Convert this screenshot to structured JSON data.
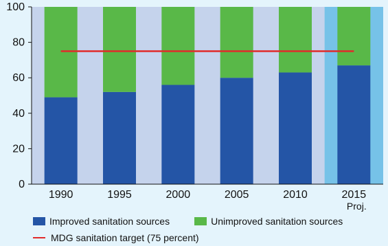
{
  "chart_data": {
    "type": "bar",
    "stacked": true,
    "categories": [
      "1990",
      "1995",
      "2000",
      "2005",
      "2010",
      "2015"
    ],
    "category_sublabels": [
      "",
      "",
      "",
      "",
      "",
      "Proj."
    ],
    "projected_categories": [
      "2015"
    ],
    "series": [
      {
        "name": "Improved sanitation sources",
        "values": [
          49,
          52,
          56,
          60,
          63,
          67
        ]
      },
      {
        "name": "Unimproved sanitation sources",
        "values": [
          51,
          48,
          44,
          40,
          37,
          33
        ]
      }
    ],
    "reference_line": {
      "name": "MDG sanitation target (75 percent)",
      "value": 75,
      "x_start": "1990",
      "x_end": "2015"
    },
    "ylim": [
      0,
      100
    ],
    "yticks": [
      0,
      20,
      40,
      60,
      80,
      100
    ],
    "grid": false,
    "legend_position": "bottom",
    "colors": {
      "improved": "#2455a6",
      "unimproved": "#59b848",
      "target_line": "#e12a2a",
      "gap_band": "#c5d3ec",
      "projection_band": "#76c2e8",
      "background": "#e4f4fc"
    }
  }
}
